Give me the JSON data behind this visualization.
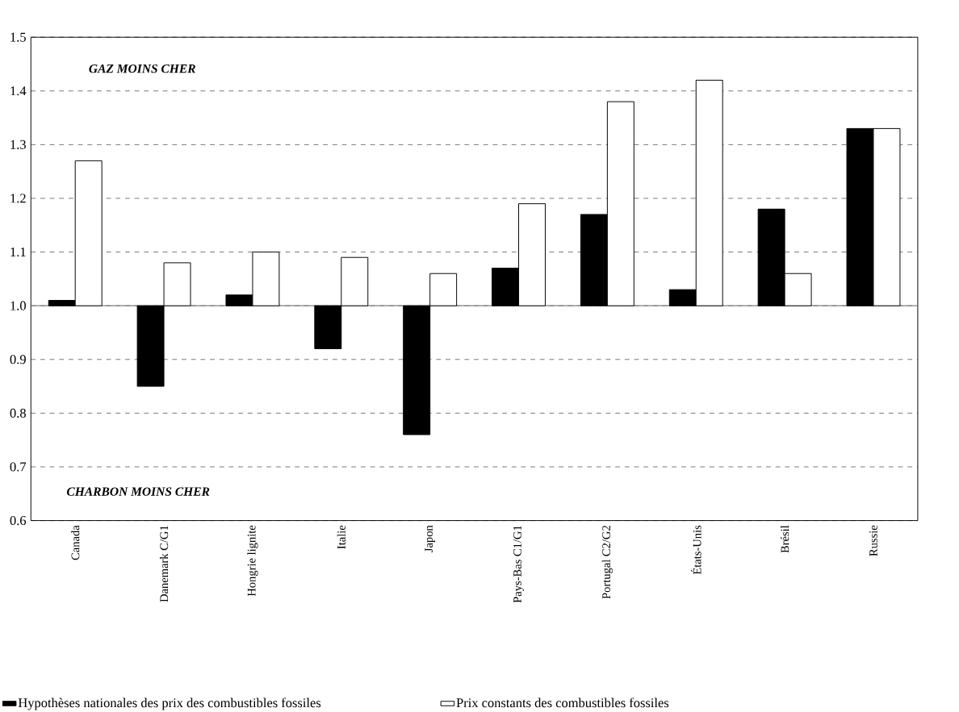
{
  "chart_data": {
    "type": "bar",
    "categories": [
      "Canada",
      "Danemark C/G1",
      "Hongrie lignite",
      "Italie",
      "Japon",
      "Pays-Bas C1/G1",
      "Portugal C2/G2",
      "États-Unis",
      "Brésil",
      "Russie"
    ],
    "series": [
      {
        "name": "Hypothèses nationales des prix des combustibles fossiles",
        "color": "#000000",
        "base": [
          1,
          1,
          1,
          1,
          1,
          1,
          1,
          1,
          1,
          1
        ],
        "values": [
          0.01,
          -0.15,
          0.02,
          -0.08,
          -0.24,
          0.07,
          0.17,
          0.03,
          0.18,
          0.33
        ]
      },
      {
        "name": "Prix constants des combustibles fossiles",
        "color": "#ffffff",
        "base": [
          1,
          1,
          1,
          1,
          1,
          1,
          1,
          1,
          1,
          1
        ],
        "values": [
          0.27,
          0.08,
          0.1,
          0.09,
          0.06,
          0.19,
          0.38,
          0.42,
          0.06,
          0.33
        ]
      }
    ],
    "ylim": [
      0.6,
      1.5
    ],
    "yticks": [
      0.6,
      0.7,
      0.8,
      0.9,
      {
        "value": 1,
        "label": "1.0"
      },
      1.1,
      1.2,
      1.3,
      1.4,
      1.5
    ],
    "grid": "y",
    "legend": "bottom",
    "ref_lines": [
      {
        "axis": "y",
        "value": 1,
        "color": "#808080",
        "line_style": "solid"
      }
    ],
    "annotations": [
      "GAZ  MOINS CHER",
      "CHARBON MOINS CHER"
    ]
  }
}
